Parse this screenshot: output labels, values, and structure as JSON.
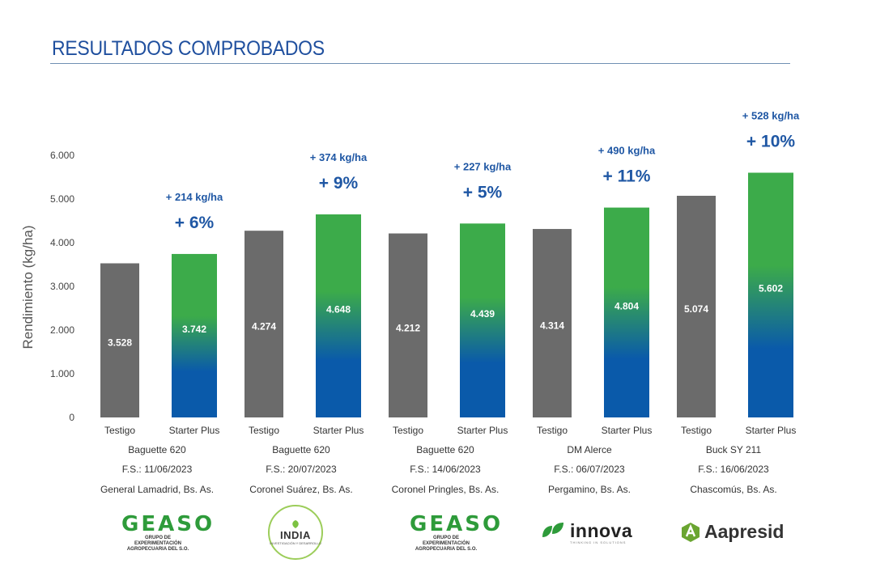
{
  "page": {
    "title": "RESULTADOS COMPROBADOS"
  },
  "chart_data": {
    "type": "bar",
    "ylabel": "Rendimiento (kg/ha)",
    "ylim": [
      0,
      6000
    ],
    "yticks": [
      "0",
      "1.000",
      "2.000",
      "3.000",
      "4.000",
      "5.000",
      "6.000"
    ],
    "grid": false,
    "legend": "none",
    "colors": {
      "testigo": "#6b6b6b",
      "starter_top": "#3cab4a",
      "starter_bottom": "#0a5aaa",
      "annotation": "#1f57a4"
    },
    "groups": [
      {
        "testigo_label": "Testigo",
        "starter_label": "Starter Plus",
        "testigo_value": 3528,
        "starter_value": 3742,
        "testigo_text": "3.528",
        "starter_text": "3.742",
        "gain_kg": "+ 214 kg/ha",
        "gain_pct": "+ 6%",
        "hybrid": "Baguette 620",
        "date": "F.S.: 11/06/2023",
        "location": "General Lamadrid, Bs. As."
      },
      {
        "testigo_label": "Testigo",
        "starter_label": "Starter Plus",
        "testigo_value": 4274,
        "starter_value": 4648,
        "testigo_text": "4.274",
        "starter_text": "4.648",
        "gain_kg": "+ 374 kg/ha",
        "gain_pct": "+ 9%",
        "hybrid": "Baguette 620",
        "date": "F.S.: 20/07/2023",
        "location": "Coronel Suárez, Bs. As."
      },
      {
        "testigo_label": "Testigo",
        "starter_label": "Starter Plus",
        "testigo_value": 4212,
        "starter_value": 4439,
        "testigo_text": "4.212",
        "starter_text": "4.439",
        "gain_kg": "+ 227 kg/ha",
        "gain_pct": "+ 5%",
        "hybrid": "Baguette 620",
        "date": "F.S.: 14/06/2023",
        "location": "Coronel Pringles, Bs. As."
      },
      {
        "testigo_label": "Testigo",
        "starter_label": "Starter Plus",
        "testigo_value": 4314,
        "starter_value": 4804,
        "testigo_text": "4.314",
        "starter_text": "4.804",
        "gain_kg": "+ 490 kg/ha",
        "gain_pct": "+ 11%",
        "hybrid": "DM Alerce",
        "date": "F.S.: 06/07/2023",
        "location": "Pergamino, Bs. As."
      },
      {
        "testigo_label": "Testigo",
        "starter_label": "Starter Plus",
        "testigo_value": 5074,
        "starter_value": 5602,
        "testigo_text": "5.074",
        "starter_text": "5.602",
        "gain_kg": "+ 528 kg/ha",
        "gain_pct": "+ 10%",
        "hybrid": "Buck SY 211",
        "date": "F.S.: 16/06/2023",
        "location": "Chascomús, Bs. As."
      }
    ]
  },
  "logos": {
    "geaso_1": {
      "word": "GEASO",
      "sub1": "GRUPO DE EXPERIMENTACIÓN",
      "sub2": "AGROPECUARIA DEL S.O."
    },
    "india": {
      "word": "INDIA",
      "sub": "INVESTIGACIÓN Y DESARROLLO"
    },
    "geaso_2": {
      "word": "GEASO",
      "sub1": "GRUPO DE EXPERIMENTACIÓN",
      "sub2": "AGROPECUARIA DEL S.O."
    },
    "innova": {
      "word": "innova",
      "sub": "THINKING IN SOLUTIONS"
    },
    "aapresid": {
      "word": "Aapresid"
    }
  }
}
